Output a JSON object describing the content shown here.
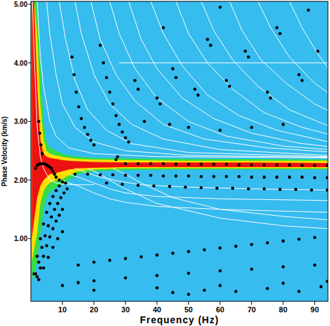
{
  "chart_data": {
    "type": "scatter",
    "x_label": "Frequency (Hz)",
    "y_label": "Phase Velocity (km/s)",
    "xlim": [
      0,
      94.2
    ],
    "ylim": [
      -0.07,
      5.05
    ],
    "xticks": [
      10,
      20,
      30,
      40,
      50,
      60,
      70,
      80,
      90
    ],
    "yticks": [
      {
        "value": 1,
        "label": "1.00"
      },
      {
        "value": 2,
        "label": "2.00"
      },
      {
        "value": 3,
        "label": "3.00"
      },
      {
        "value": 4,
        "label": "4.00"
      },
      {
        "value": 5,
        "label": "5.00"
      }
    ],
    "grid": false,
    "series": [
      {
        "type": "area",
        "color": "#33dd44",
        "x": [
          0.3,
          1,
          2,
          3,
          4,
          5,
          6,
          8,
          10,
          12,
          15,
          20,
          30,
          50,
          70,
          94.5
        ],
        "values": [
          5.05,
          5.05,
          5.05,
          4.0,
          3.0,
          2.65,
          2.55,
          2.5,
          2.45,
          2.42,
          2.4,
          2.38,
          2.37,
          2.36,
          2.36,
          2.35
        ],
        "lower": [
          0.3,
          0.35,
          0.6,
          1.1,
          1.45,
          1.7,
          1.8,
          1.88,
          1.92,
          2.0,
          2.1,
          2.15,
          2.17,
          2.18,
          2.18,
          2.18
        ]
      },
      {
        "type": "area",
        "color": "#ffdd00",
        "x": [
          0.3,
          1,
          2,
          3,
          4,
          5,
          6,
          8,
          10,
          12,
          15,
          20,
          30,
          50,
          70,
          94.5
        ],
        "values": [
          5.05,
          5.05,
          4.5,
          3.3,
          2.7,
          2.5,
          2.45,
          2.42,
          2.4,
          2.38,
          2.36,
          2.35,
          2.34,
          2.33,
          2.33,
          2.33
        ],
        "lower": [
          0.6,
          0.8,
          1.1,
          1.6,
          1.8,
          1.9,
          1.95,
          2.0,
          2.02,
          2.08,
          2.15,
          2.18,
          2.2,
          2.2,
          2.2,
          2.2
        ]
      },
      {
        "type": "area",
        "color": "#ee1111",
        "x": [
          0.3,
          1,
          2,
          3,
          4,
          5,
          6,
          8,
          10,
          12,
          15,
          20,
          30,
          50,
          70,
          94.5
        ],
        "values": [
          5.05,
          5.05,
          3.6,
          2.7,
          2.45,
          2.4,
          2.38,
          2.36,
          2.34,
          2.33,
          2.32,
          2.31,
          2.3,
          2.3,
          2.3,
          2.29
        ],
        "lower": [
          1.0,
          1.3,
          1.7,
          1.9,
          2.0,
          2.05,
          2.1,
          2.12,
          2.15,
          2.18,
          2.2,
          2.21,
          2.22,
          2.22,
          2.22,
          2.22
        ]
      },
      {
        "type": "line",
        "color": "#ffffff",
        "x": [
          0.5,
          1,
          2,
          3,
          4,
          6,
          8,
          10,
          14,
          20
        ],
        "values": [
          5.05,
          4.2,
          2.9,
          2.4,
          2.2,
          2.0,
          1.95,
          1.93,
          1.92,
          1.92
        ]
      },
      {
        "type": "line",
        "color": "#ffffff",
        "x": [
          2,
          3,
          4,
          6,
          8,
          12,
          20,
          40,
          94.5
        ],
        "values": [
          5.05,
          4.1,
          3.6,
          3.0,
          2.75,
          2.55,
          2.45,
          2.4,
          2.38
        ]
      },
      {
        "type": "line",
        "color": "#ffffff",
        "x": [
          5,
          6,
          8,
          10,
          14,
          20,
          30,
          50,
          94.5
        ],
        "values": [
          5.05,
          4.5,
          3.8,
          3.3,
          2.9,
          2.65,
          2.5,
          2.42,
          2.39
        ]
      },
      {
        "type": "line",
        "color": "#ffffff",
        "x": [
          9,
          11,
          14,
          18,
          24,
          32,
          50,
          94.5
        ],
        "values": [
          5.05,
          4.4,
          3.7,
          3.2,
          2.85,
          2.62,
          2.47,
          2.4
        ]
      },
      {
        "type": "line",
        "color": "#ffffff",
        "x": [
          14,
          16,
          20,
          25,
          32,
          42,
          60,
          94.5
        ],
        "values": [
          5.05,
          4.5,
          3.8,
          3.3,
          2.95,
          2.7,
          2.52,
          2.42
        ]
      },
      {
        "type": "line",
        "color": "#ffffff",
        "x": [
          19,
          22,
          27,
          33,
          42,
          55,
          75,
          94.5
        ],
        "values": [
          5.05,
          4.4,
          3.8,
          3.35,
          2.95,
          2.7,
          2.55,
          2.48
        ]
      },
      {
        "type": "line",
        "color": "#ffffff",
        "x": [
          25,
          28,
          33,
          40,
          50,
          62,
          80,
          94.5
        ],
        "values": [
          5.05,
          4.5,
          3.9,
          3.4,
          3.0,
          2.75,
          2.58,
          2.52
        ]
      },
      {
        "type": "line",
        "color": "#ffffff",
        "x": [
          31,
          35,
          40,
          48,
          58,
          70,
          85,
          94.5
        ],
        "values": [
          5.05,
          4.4,
          3.9,
          3.4,
          3.05,
          2.8,
          2.63,
          2.57
        ]
      },
      {
        "type": "line",
        "color": "#ffffff",
        "x": [
          38,
          42,
          48,
          56,
          66,
          78,
          94.5
        ],
        "values": [
          5.05,
          4.5,
          3.95,
          3.45,
          3.1,
          2.85,
          2.65
        ]
      },
      {
        "type": "line",
        "color": "#ffffff",
        "x": [
          46,
          50,
          56,
          64,
          74,
          86,
          94.5
        ],
        "values": [
          5.05,
          4.5,
          4.0,
          3.55,
          3.15,
          2.9,
          2.78
        ]
      },
      {
        "type": "line",
        "color": "#ffffff",
        "x": [
          54,
          58,
          64,
          72,
          82,
          94.5
        ],
        "values": [
          5.05,
          4.55,
          4.05,
          3.6,
          3.2,
          2.92
        ]
      },
      {
        "type": "line",
        "color": "#ffffff",
        "x": [
          63,
          67,
          73,
          81,
          90,
          94.5
        ],
        "values": [
          5.05,
          4.55,
          4.05,
          3.65,
          3.3,
          3.18
        ]
      },
      {
        "type": "line",
        "color": "#ffffff",
        "x": [
          72,
          76,
          82,
          90,
          94.5
        ],
        "values": [
          5.05,
          4.6,
          4.1,
          3.65,
          3.48
        ]
      },
      {
        "type": "line",
        "color": "#ffffff",
        "x": [
          82,
          86,
          91,
          94.5
        ],
        "values": [
          5.05,
          4.6,
          4.15,
          3.9
        ]
      },
      {
        "type": "line",
        "color": "#ffffff",
        "x": [
          28,
          50,
          94.5
        ],
        "values": [
          4.0,
          4.0,
          4.0
        ]
      },
      {
        "type": "line",
        "color": "#ffffff",
        "x": [
          10,
          12,
          15,
          20,
          25,
          30,
          40,
          60,
          80,
          94.5
        ],
        "values": [
          2.0,
          1.95,
          1.9,
          1.78,
          1.68,
          1.62,
          1.55,
          1.5,
          1.47,
          1.45
        ]
      },
      {
        "type": "line",
        "color": "#ffffff",
        "x": [
          12,
          15,
          20,
          25,
          30,
          40,
          60,
          94.5
        ],
        "values": [
          2.1,
          2.05,
          1.95,
          1.85,
          1.78,
          1.72,
          1.68,
          1.65
        ]
      },
      {
        "type": "line",
        "color": "#ffffff",
        "x": [
          14,
          18,
          22,
          28,
          35,
          50,
          70,
          94.5
        ],
        "values": [
          2.2,
          2.12,
          2.05,
          1.98,
          1.92,
          1.88,
          1.85,
          1.83
        ]
      },
      {
        "type": "line",
        "color": "#ffffff",
        "x": [
          26,
          30,
          35,
          45,
          60,
          80,
          94.5
        ],
        "values": [
          2.2,
          2.1,
          1.95,
          1.7,
          1.5,
          1.38,
          1.32
        ]
      },
      {
        "type": "line",
        "color": "#ffffff",
        "x": [
          18,
          22,
          28,
          40,
          60,
          80,
          94.5
        ],
        "values": [
          2.2,
          2.1,
          1.9,
          1.6,
          1.35,
          1.22,
          1.17
        ]
      },
      {
        "type": "scatter",
        "color": "#000000",
        "marker": "circle",
        "x": [
          1.5,
          2,
          2.5,
          3,
          3.5,
          4,
          4.5,
          5,
          5.5,
          6,
          6.5,
          7,
          7.5,
          8,
          9,
          10,
          11,
          2.5,
          2.8,
          3.2,
          3.6,
          13,
          13.7,
          14.4,
          15.2,
          16,
          17,
          18,
          19,
          20,
          22,
          23,
          24,
          25,
          26,
          27,
          28,
          29,
          30,
          31,
          27,
          27.5,
          33,
          34,
          40,
          41,
          45,
          46,
          52,
          53,
          56,
          57,
          62,
          63,
          68,
          69,
          75,
          76,
          78,
          79,
          85,
          86,
          88,
          91,
          36,
          44,
          50,
          60,
          70,
          80,
          60,
          42,
          30,
          34,
          38,
          42,
          46,
          50,
          54,
          58,
          62,
          66,
          70,
          74,
          78,
          82,
          86,
          90,
          94,
          14,
          18,
          22,
          26,
          30,
          34,
          38,
          42,
          46,
          50,
          54,
          58,
          62,
          66,
          70,
          74,
          78,
          82,
          86,
          90,
          94,
          24,
          29,
          34,
          39,
          44,
          49,
          54,
          59,
          64,
          69,
          74,
          79,
          84,
          89,
          94,
          1,
          2,
          3,
          4,
          5,
          6,
          7,
          8,
          9,
          1.5,
          2.5,
          3.5,
          4.5,
          5.5,
          6.5,
          7.5,
          8.5,
          9.5,
          10.5,
          11.5,
          2,
          3,
          4,
          5,
          6,
          7,
          8,
          9,
          10,
          2.5,
          4,
          5.5,
          7,
          8.5,
          10,
          15,
          20,
          25,
          30,
          35,
          40,
          45,
          50,
          55,
          60,
          65,
          70,
          75,
          80,
          85,
          90,
          10,
          15,
          20,
          30,
          40,
          50,
          60,
          70,
          80,
          90,
          20,
          40,
          60,
          80,
          94,
          45,
          55,
          65,
          75,
          85,
          92,
          50
        ],
        "values": [
          2.2,
          2.25,
          2.27,
          2.28,
          2.28,
          2.28,
          2.27,
          2.26,
          2.24,
          2.22,
          2.2,
          2.15,
          2.1,
          2.05,
          2.0,
          1.97,
          1.95,
          3.0,
          2.8,
          2.6,
          2.45,
          4.1,
          3.8,
          3.5,
          3.25,
          3.05,
          2.9,
          2.78,
          2.68,
          2.6,
          4.3,
          4.0,
          3.75,
          3.5,
          3.3,
          3.1,
          2.95,
          2.82,
          2.72,
          2.65,
          2.35,
          2.4,
          3.7,
          3.55,
          3.4,
          3.3,
          3.9,
          3.75,
          3.55,
          3.45,
          4.4,
          4.3,
          3.7,
          3.6,
          4.2,
          4.1,
          3.5,
          3.4,
          4.6,
          4.5,
          3.8,
          3.7,
          4.9,
          4.2,
          3.0,
          2.95,
          2.9,
          2.85,
          2.9,
          2.95,
          4.95,
          4.6,
          2.28,
          2.28,
          2.28,
          2.28,
          2.27,
          2.27,
          2.27,
          2.27,
          2.27,
          2.26,
          2.26,
          2.26,
          2.26,
          2.26,
          2.25,
          2.25,
          2.25,
          2.1,
          2.1,
          2.09,
          2.09,
          2.08,
          2.08,
          2.08,
          2.07,
          2.07,
          2.07,
          2.06,
          2.06,
          2.06,
          2.06,
          2.05,
          2.05,
          2.05,
          2.05,
          2.05,
          2.04,
          2.04,
          1.95,
          1.93,
          1.91,
          1.9,
          1.89,
          1.88,
          1.87,
          1.86,
          1.86,
          1.85,
          1.85,
          1.84,
          1.84,
          1.83,
          1.83,
          0.4,
          0.7,
          1.0,
          1.25,
          1.45,
          1.6,
          1.72,
          1.82,
          1.9,
          0.4,
          0.6,
          0.85,
          1.05,
          1.22,
          1.37,
          1.5,
          1.6,
          1.7,
          1.78,
          1.85,
          0.35,
          0.5,
          0.7,
          0.88,
          1.03,
          1.17,
          1.3,
          1.4,
          1.5,
          0.3,
          0.5,
          0.68,
          0.85,
          1.0,
          1.12,
          0.55,
          0.6,
          0.63,
          0.66,
          0.69,
          0.72,
          0.75,
          0.78,
          0.81,
          0.84,
          0.87,
          0.9,
          0.93,
          0.96,
          0.99,
          1.02,
          0.2,
          0.25,
          0.28,
          0.33,
          0.37,
          0.41,
          0.45,
          0.48,
          0.52,
          0.55,
          0.12,
          0.16,
          0.2,
          0.24,
          0.27,
          0.08,
          0.12,
          0.1,
          0.15,
          0.1,
          0.18,
          0.05
        ]
      }
    ]
  }
}
